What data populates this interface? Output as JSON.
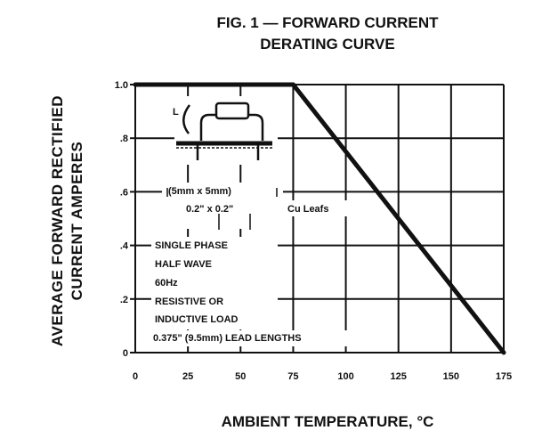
{
  "chart_data": {
    "type": "line",
    "title": "FIG. 1 — FORWARD CURRENT DERATING CURVE",
    "title_lines": [
      "FIG. 1 — FORWARD CURRENT",
      "DERATING CURVE"
    ],
    "xlabel": "AMBIENT TEMPERATURE, °C",
    "ylabel": "AVERAGE FORWARD RECTIFIED CURRENT AMPERES",
    "ylabel_lines": [
      "AVERAGE FORWARD RECTIFIED",
      "CURRENT AMPERES"
    ],
    "xlim": [
      0,
      175
    ],
    "ylim": [
      0,
      1.0
    ],
    "x_ticks": [
      0,
      25,
      50,
      75,
      100,
      125,
      150,
      175
    ],
    "x_tick_labels": [
      "0",
      "25",
      "50",
      "75",
      "100",
      "125",
      "150",
      "175"
    ],
    "y_ticks": [
      0,
      0.2,
      0.4,
      0.6,
      0.8,
      1.0
    ],
    "y_tick_labels": [
      "0",
      ".2",
      ".4",
      ".6",
      ".8",
      "1.0"
    ],
    "grid": true,
    "series": [
      {
        "x": [
          0,
          75,
          175
        ],
        "y": [
          1.0,
          1.0,
          0.0
        ]
      }
    ],
    "annotations": {
      "dimension": "(5mm x 5mm)",
      "dimension_in": "0.2\" x 0.2\"",
      "leads": "Cu Leafs",
      "label_l": "L",
      "conditions": [
        "SINGLE PHASE",
        "HALF WAVE",
        "60Hz",
        "RESISTIVE OR",
        "INDUCTIVE LOAD",
        "0.375\" (9.5mm) LEAD LENGTHS"
      ]
    }
  },
  "colors": {
    "ink": "#111111",
    "background": "#ffffff"
  }
}
